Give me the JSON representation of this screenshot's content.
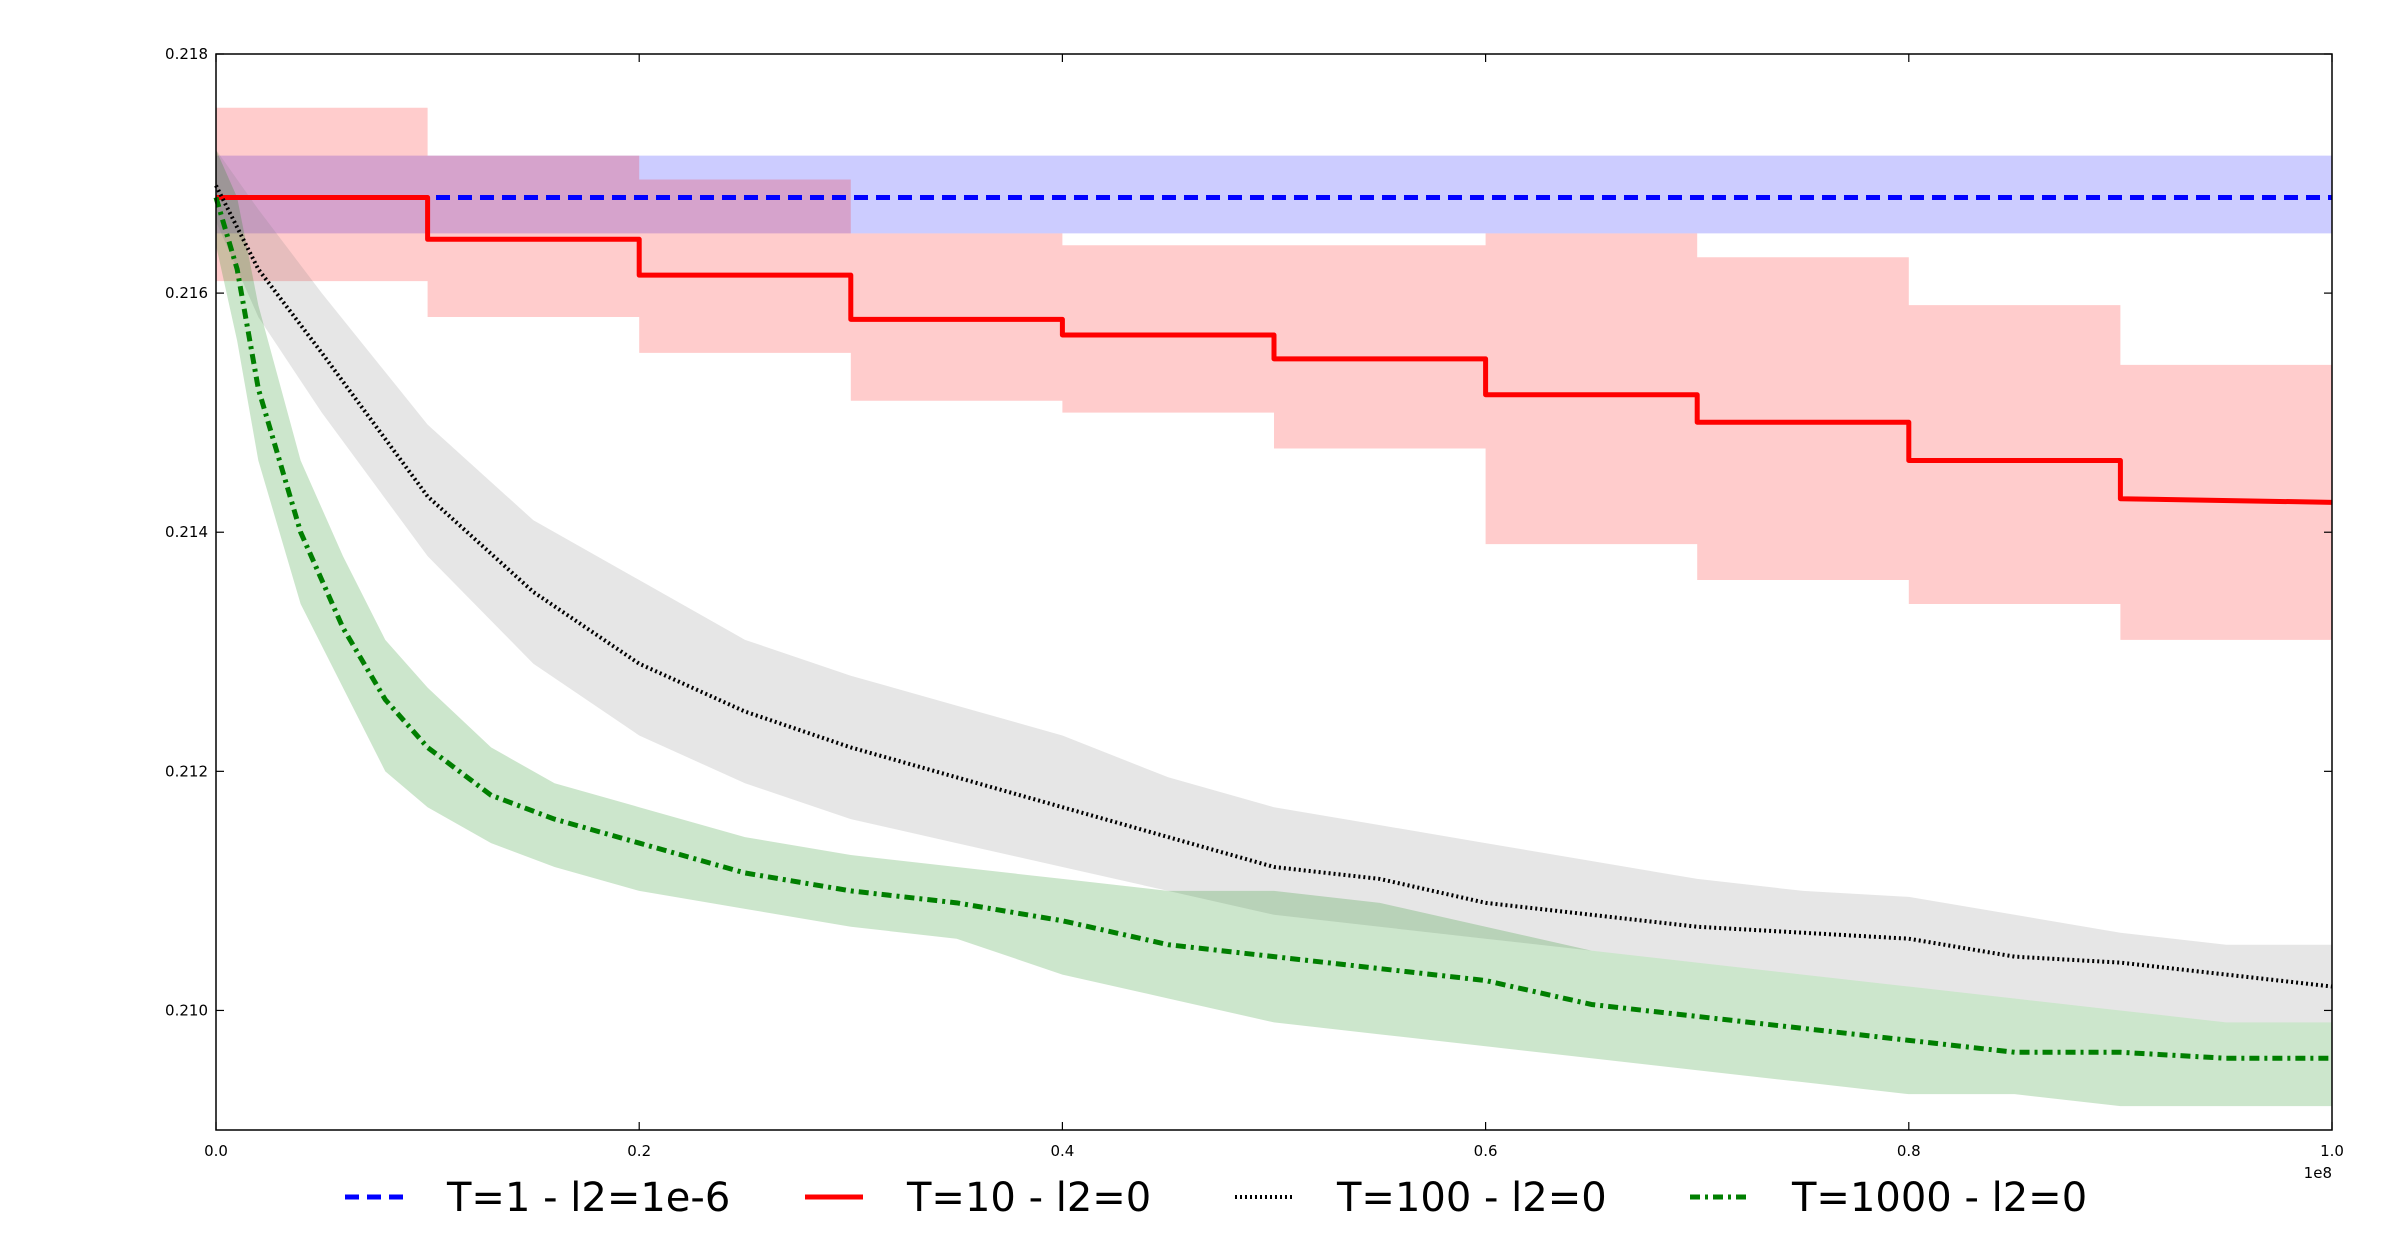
{
  "chart_data": {
    "type": "line",
    "title": "",
    "xlabel": "",
    "ylabel": "",
    "x_offset_text": "1e8",
    "xlim": [
      0,
      1.0
    ],
    "ylim": [
      0.209,
      0.218
    ],
    "x_ticks": [
      0.0,
      0.2,
      0.4,
      0.6,
      0.8,
      1.0
    ],
    "x_tick_labels": [
      "0.0",
      "0.2",
      "0.4",
      "0.6",
      "0.8",
      "1.0"
    ],
    "y_ticks": [
      0.21,
      0.212,
      0.214,
      0.216,
      0.218
    ],
    "y_tick_labels": [
      "0.210",
      "0.212",
      "0.214",
      "0.216",
      "0.218"
    ],
    "grid": false,
    "legend_position": "bottom, outside plot, single row",
    "series": [
      {
        "name": "T=1 - l2=1e-6",
        "color": "#0000ff",
        "band_color": "#0000ff",
        "style": "dashed",
        "x": [
          0.0,
          1.0
        ],
        "y": [
          0.2168,
          0.2168
        ],
        "band_lower": [
          0.2165,
          0.2165
        ],
        "band_upper": [
          0.21715,
          0.21715
        ]
      },
      {
        "name": "T=10 - l2=0",
        "color": "#ff0000",
        "band_color": "#ff0000",
        "style": "solid",
        "x": [
          0.0,
          0.1,
          0.1,
          0.2,
          0.2,
          0.3,
          0.3,
          0.4,
          0.4,
          0.5,
          0.5,
          0.6,
          0.6,
          0.7,
          0.7,
          0.8,
          0.8,
          0.9,
          0.9,
          1.0
        ],
        "y": [
          0.2168,
          0.2168,
          0.21645,
          0.21645,
          0.21615,
          0.21615,
          0.21578,
          0.21578,
          0.21565,
          0.21565,
          0.21545,
          0.21545,
          0.21515,
          0.21515,
          0.21492,
          0.21492,
          0.2146,
          0.2146,
          0.21428,
          0.21425
        ],
        "band_lower": [
          0.2161,
          0.2161,
          0.2158,
          0.2158,
          0.2155,
          0.2155,
          0.2151,
          0.2151,
          0.215,
          0.215,
          0.2147,
          0.2147,
          0.2139,
          0.2139,
          0.2136,
          0.2136,
          0.2134,
          0.2134,
          0.2131,
          0.2131
        ],
        "band_upper": [
          0.21755,
          0.21755,
          0.21715,
          0.21715,
          0.21695,
          0.21695,
          0.2165,
          0.2165,
          0.2164,
          0.2164,
          0.2164,
          0.2164,
          0.2165,
          0.2165,
          0.2163,
          0.2163,
          0.2159,
          0.2159,
          0.2154,
          0.2154
        ]
      },
      {
        "name": "T=100 - l2=0",
        "color": "#000000",
        "band_color": "#808080",
        "style": "dotted",
        "x": [
          0.0,
          0.02,
          0.05,
          0.1,
          0.15,
          0.2,
          0.25,
          0.3,
          0.35,
          0.4,
          0.45,
          0.5,
          0.55,
          0.6,
          0.65,
          0.7,
          0.75,
          0.8,
          0.85,
          0.9,
          0.95,
          1.0
        ],
        "y": [
          0.2169,
          0.2162,
          0.2155,
          0.2143,
          0.2135,
          0.2129,
          0.2125,
          0.2122,
          0.21195,
          0.2117,
          0.21145,
          0.2112,
          0.2111,
          0.2109,
          0.2108,
          0.2107,
          0.21065,
          0.2106,
          0.21045,
          0.2104,
          0.2103,
          0.2102
        ],
        "band_lower": [
          0.2166,
          0.2158,
          0.215,
          0.2138,
          0.2129,
          0.2123,
          0.2119,
          0.2116,
          0.2114,
          0.2112,
          0.211,
          0.2108,
          0.2107,
          0.2106,
          0.2105,
          0.2104,
          0.2103,
          0.2102,
          0.2101,
          0.21,
          0.2099,
          0.2099
        ],
        "band_upper": [
          0.2172,
          0.2167,
          0.216,
          0.2149,
          0.2141,
          0.2136,
          0.2131,
          0.2128,
          0.21255,
          0.2123,
          0.21195,
          0.2117,
          0.21155,
          0.2114,
          0.21125,
          0.2111,
          0.211,
          0.21095,
          0.2108,
          0.21065,
          0.21055,
          0.21055
        ]
      },
      {
        "name": "T=1000 - l2=0",
        "color": "#007f00",
        "band_color": "#008000",
        "style": "dashdot",
        "x": [
          0.0,
          0.01,
          0.02,
          0.04,
          0.06,
          0.08,
          0.1,
          0.13,
          0.16,
          0.2,
          0.25,
          0.3,
          0.35,
          0.4,
          0.45,
          0.5,
          0.55,
          0.6,
          0.65,
          0.7,
          0.75,
          0.8,
          0.85,
          0.9,
          0.95,
          1.0
        ],
        "y": [
          0.2168,
          0.2162,
          0.2152,
          0.214,
          0.2132,
          0.2126,
          0.2122,
          0.2118,
          0.2116,
          0.2114,
          0.21115,
          0.211,
          0.2109,
          0.21075,
          0.21055,
          0.21045,
          0.21035,
          0.21025,
          0.21005,
          0.20995,
          0.20985,
          0.20975,
          0.20965,
          0.20965,
          0.2096,
          0.2096
        ],
        "band_lower": [
          0.2164,
          0.2156,
          0.2146,
          0.2134,
          0.2127,
          0.212,
          0.2117,
          0.2114,
          0.2112,
          0.211,
          0.21085,
          0.2107,
          0.2106,
          0.2103,
          0.2101,
          0.2099,
          0.2098,
          0.2097,
          0.2096,
          0.2095,
          0.2094,
          0.2093,
          0.2093,
          0.2092,
          0.2092,
          0.2092
        ],
        "band_upper": [
          0.2172,
          0.2168,
          0.2159,
          0.2146,
          0.2138,
          0.2131,
          0.2127,
          0.2122,
          0.2119,
          0.2117,
          0.21145,
          0.2113,
          0.2112,
          0.2111,
          0.211,
          0.211,
          0.2109,
          0.2107,
          0.2105,
          0.2104,
          0.2103,
          0.2102,
          0.2101,
          0.21,
          0.2099,
          0.2099
        ]
      }
    ]
  }
}
